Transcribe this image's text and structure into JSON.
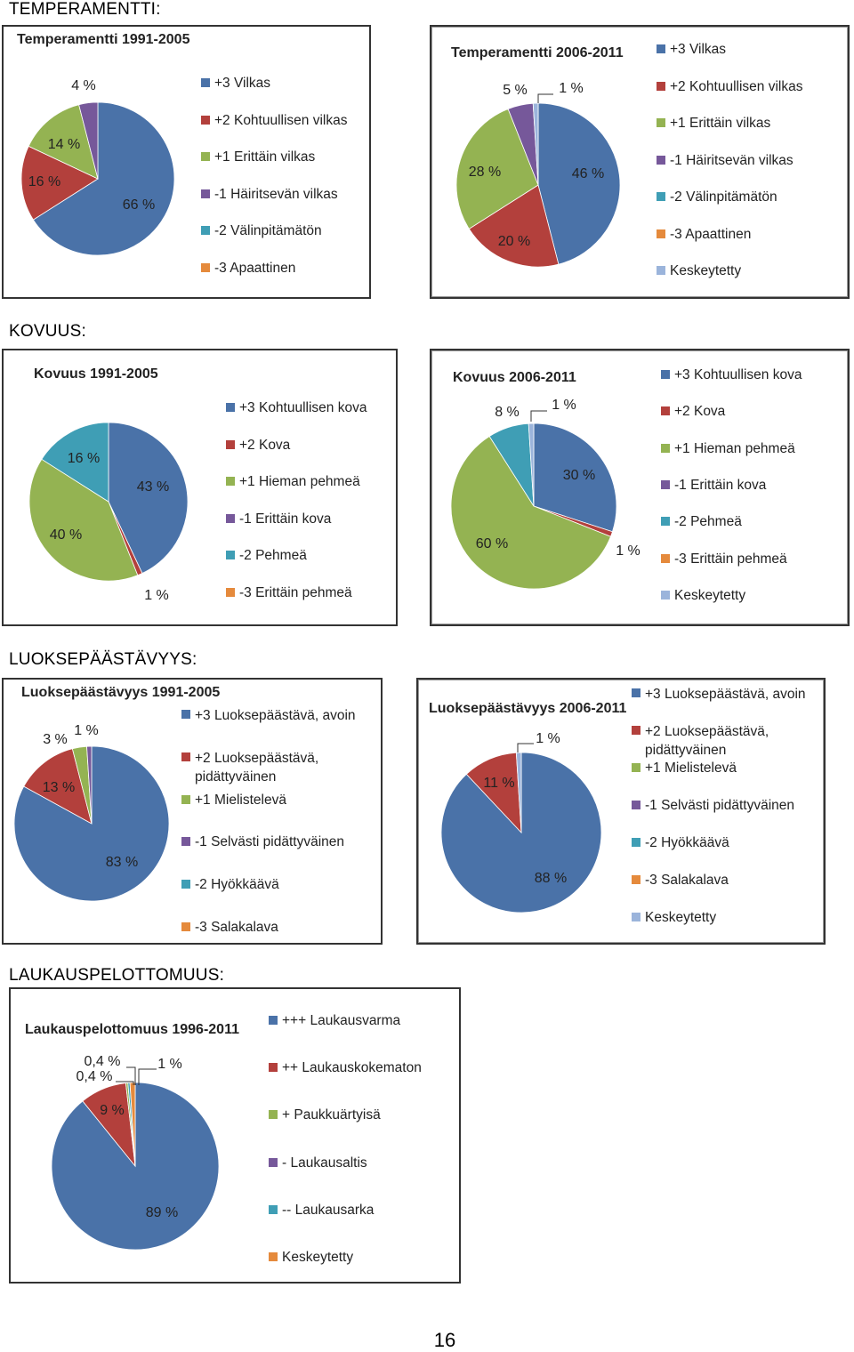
{
  "page": {
    "number": "16"
  },
  "sections": [
    {
      "heading": "TEMPERAMENTTI:"
    },
    {
      "heading": "KOVUUS:"
    },
    {
      "heading": "LUOKSEPÄÄSTÄVYYS:"
    },
    {
      "heading": "LAUKAUSPELOTTOMUUS:"
    }
  ],
  "colors": {
    "blue": "#4a72a8",
    "red": "#b3403c",
    "green": "#94b352",
    "purple": "#76589a",
    "cyan": "#3f9eb5",
    "orange": "#e58a3c",
    "lightblue": "#9bb4db"
  },
  "chart_data": [
    {
      "type": "pie",
      "title": "Temperamentti 1991-2005",
      "legend_placement": "right",
      "categories": [
        "+3 Vilkas",
        "+2 Kohtuullisen vilkas",
        "+1 Erittäin vilkas",
        "-1 Häiritsevän vilkas",
        "-2 Välinpitämätön",
        "-3 Apaattinen"
      ],
      "values": [
        66,
        16,
        14,
        4,
        0,
        0
      ],
      "data_labels": [
        "66 %",
        "16 %",
        "14 %",
        "4 %",
        "",
        ""
      ]
    },
    {
      "type": "pie",
      "title": "Temperamentti 2006-2011",
      "legend_placement": "right",
      "categories": [
        "+3 Vilkas",
        "+2 Kohtuullisen vilkas",
        "+1 Erittäin vilkas",
        "-1 Häiritsevän vilkas",
        "-2 Välinpitämätön",
        "-3 Apaattinen",
        "Keskeytetty"
      ],
      "values": [
        46,
        20,
        28,
        5,
        0,
        0,
        1
      ],
      "data_labels": [
        "46 %",
        "20 %",
        "28 %",
        "5 %",
        "",
        "",
        "1 %"
      ]
    },
    {
      "type": "pie",
      "title": "Kovuus 1991-2005",
      "legend_placement": "right",
      "categories": [
        "+3 Kohtuullisen kova",
        "+2 Kova",
        "+1 Hieman pehmeä",
        "-1 Erittäin kova",
        "-2 Pehmeä",
        "-3 Erittäin pehmeä"
      ],
      "values": [
        43,
        1,
        40,
        0,
        16,
        0
      ],
      "data_labels": [
        "43 %",
        "1 %",
        "40 %",
        "",
        "16 %",
        ""
      ]
    },
    {
      "type": "pie",
      "title": "Kovuus 2006-2011",
      "legend_placement": "right",
      "categories": [
        "+3 Kohtuullisen kova",
        "+2 Kova",
        "+1 Hieman pehmeä",
        "-1 Erittäin kova",
        "-2 Pehmeä",
        "-3 Erittäin pehmeä",
        "Keskeytetty"
      ],
      "values": [
        30,
        1,
        60,
        0,
        8,
        0,
        1
      ],
      "data_labels": [
        "30 %",
        "1 %",
        "60 %",
        "",
        "8 %",
        "",
        "1 %"
      ]
    },
    {
      "type": "pie",
      "title": "Luoksepäästävyys 1991-2005",
      "legend_placement": "right",
      "categories": [
        "+3 Luoksepäästävä, avoin",
        "+2 Luoksepäästävä, pidättyväinen",
        "+1 Mielistelevä",
        "-1 Selvästi pidättyväinen",
        "-2 Hyökkäävä",
        "-3 Salakalava"
      ],
      "values": [
        83,
        13,
        3,
        1,
        0,
        0
      ],
      "data_labels": [
        "83 %",
        "13 %",
        "3 %",
        "1 %",
        "",
        ""
      ]
    },
    {
      "type": "pie",
      "title": "Luoksepäästävyys 2006-2011",
      "legend_placement": "right",
      "categories": [
        "+3 Luoksepäästävä, avoin",
        "+2 Luoksepäästävä, pidättyväinen",
        "+1 Mielistelevä",
        "-1 Selvästi pidättyväinen",
        "-2 Hyökkäävä",
        "-3 Salakalava",
        "Keskeytetty"
      ],
      "values": [
        88,
        11,
        0,
        0,
        0,
        0,
        1
      ],
      "data_labels": [
        "88 %",
        "11 %",
        "",
        "",
        "",
        "",
        "1 %"
      ]
    },
    {
      "type": "pie",
      "title": "Laukauspelottomuus  1996-2011",
      "legend_placement": "right",
      "categories": [
        "+++ Laukausvarma",
        "++ Laukauskokematon",
        "+ Paukkuärtyisä",
        "- Laukausaltis",
        "-- Laukausarka",
        "Keskeytetty"
      ],
      "values": [
        89,
        9,
        0.4,
        0,
        0.4,
        1
      ],
      "data_labels": [
        "89 %",
        "9 %",
        "0,4 %",
        "",
        "0,4 %",
        "1 %"
      ]
    }
  ]
}
